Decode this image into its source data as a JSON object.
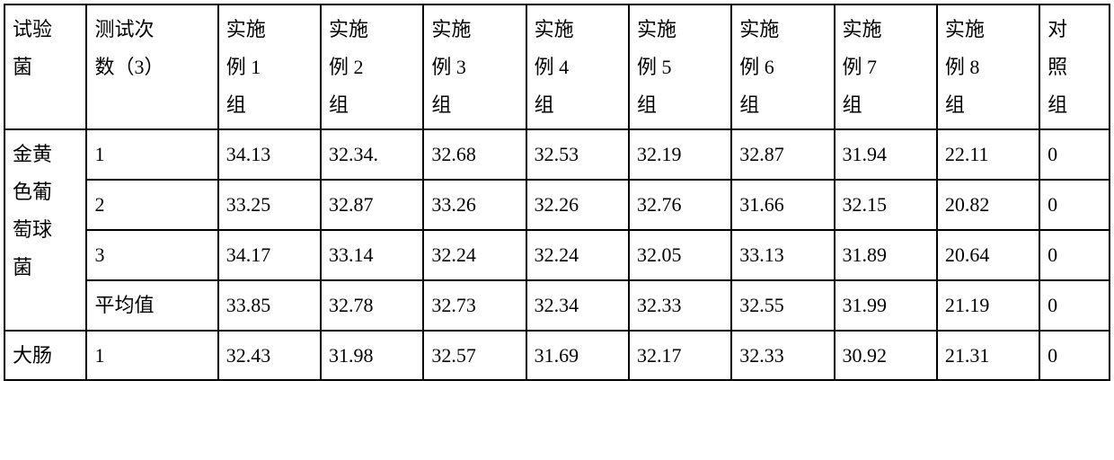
{
  "headers": {
    "bacteria": "试验\n菌",
    "testnum": "测试次\n数（3）",
    "g1": "实施\n例 1\n组",
    "g2": "实施\n例 2\n组",
    "g3": "实施\n例 3\n组",
    "g4": "实施\n例 4\n组",
    "g5": "实施\n例 5\n组",
    "g6": "实施\n例 6\n组",
    "g7": "实施\n例 7\n组",
    "g8": "实施\n例 8\n组",
    "control": "对\n照\n组"
  },
  "bacteria1_name": "金黄\n色葡\n萄球\n菌",
  "bacteria2_name": "大肠",
  "rows": {
    "b1r1": {
      "test": "1",
      "g1": "34.13",
      "g2": "32.34.",
      "g3": "32.68",
      "g4": "32.53",
      "g5": "32.19",
      "g6": "32.87",
      "g7": "31.94",
      "g8": "22.11",
      "c": "0"
    },
    "b1r2": {
      "test": "2",
      "g1": "33.25",
      "g2": "32.87",
      "g3": "33.26",
      "g4": "32.26",
      "g5": "32.76",
      "g6": "31.66",
      "g7": "32.15",
      "g8": "20.82",
      "c": "0"
    },
    "b1r3": {
      "test": "3",
      "g1": "34.17",
      "g2": "33.14",
      "g3": "32.24",
      "g4": "32.24",
      "g5": "32.05",
      "g6": "33.13",
      "g7": "31.89",
      "g8": "20.64",
      "c": "0"
    },
    "b1avg": {
      "test": "平均值",
      "g1": "33.85",
      "g2": "32.78",
      "g3": "32.73",
      "g4": "32.34",
      "g5": "32.33",
      "g6": "32.55",
      "g7": "31.99",
      "g8": "21.19",
      "c": "0"
    },
    "b2r1": {
      "test": "1",
      "g1": "32.43",
      "g2": "31.98",
      "g3": "32.57",
      "g4": "31.69",
      "g5": "32.17",
      "g6": "32.33",
      "g7": "30.92",
      "g8": "21.31",
      "c": "0"
    }
  }
}
